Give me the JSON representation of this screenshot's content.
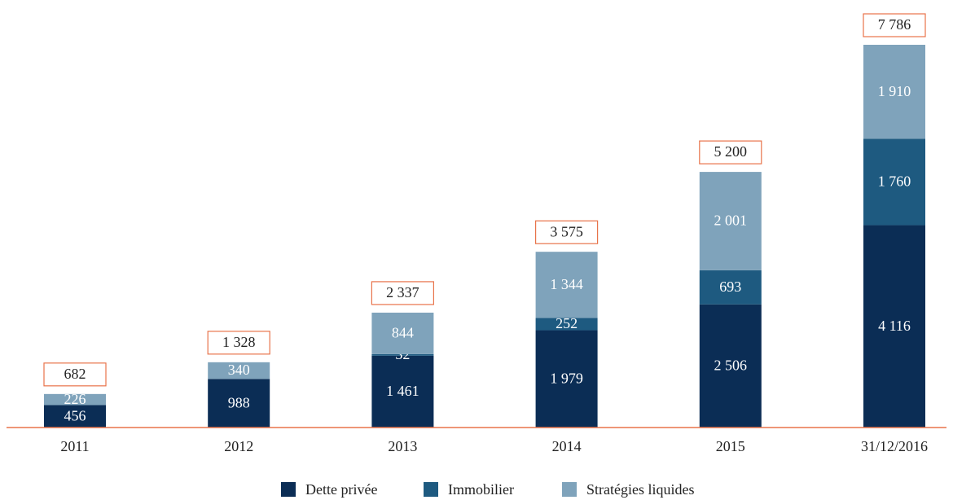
{
  "chart_data": {
    "type": "stacked_bar",
    "categories": [
      "2011",
      "2012",
      "2013",
      "2014",
      "2015",
      "31/12/2016"
    ],
    "series": [
      {
        "name": "Dette privée",
        "color": "#0b2d55",
        "values": [
          456,
          988,
          1461,
          1979,
          2506,
          4116
        ],
        "value_labels": [
          "456",
          "988",
          "1 461",
          "1 979",
          "2 506",
          "4 116"
        ]
      },
      {
        "name": "Immobilier",
        "color": "#1e5a80",
        "values": [
          null,
          null,
          32,
          252,
          693,
          1760
        ],
        "value_labels": [
          null,
          null,
          "32",
          "252",
          "693",
          "1 760"
        ]
      },
      {
        "name": "Stratégies liquides",
        "color": "#7fa3bb",
        "values": [
          226,
          340,
          844,
          1344,
          2001,
          1910
        ],
        "value_labels": [
          "226",
          "340",
          "844",
          "1 344",
          "2 001",
          "1 910"
        ]
      }
    ],
    "totals": [
      682,
      1328,
      2337,
      3575,
      5200,
      7786
    ],
    "total_labels": [
      "682",
      "1 328",
      "2 337",
      "3 575",
      "5 200",
      "7 786"
    ],
    "total_box_color": "#e8734a",
    "baseline_color": "#e8734a"
  }
}
